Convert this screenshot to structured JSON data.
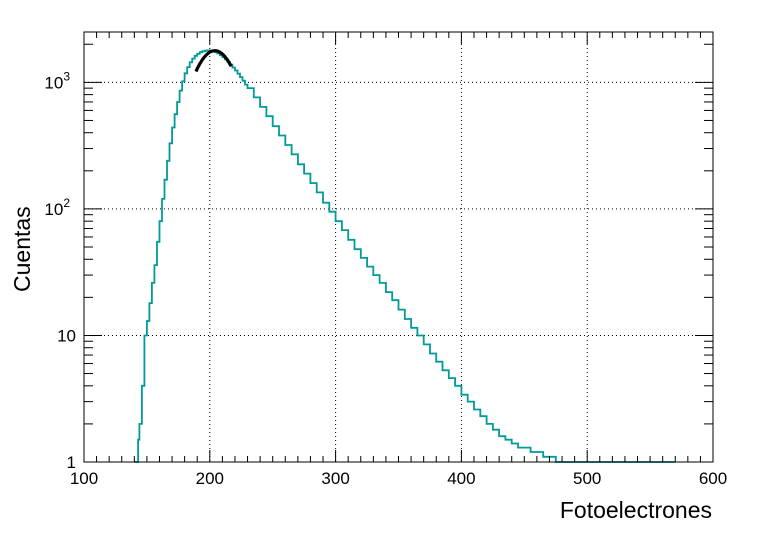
{
  "chart_data": {
    "type": "line",
    "title": "",
    "xlabel": "Fotoelectrones",
    "ylabel": "Cuentas",
    "xlim": [
      100,
      600
    ],
    "ylim": [
      1,
      2500
    ],
    "yscale": "log",
    "grid": true,
    "legend": "none",
    "x_ticks": [
      {
        "value": 100,
        "label": "100"
      },
      {
        "value": 200,
        "label": "200"
      },
      {
        "value": 300,
        "label": "300"
      },
      {
        "value": 400,
        "label": "400"
      },
      {
        "value": 500,
        "label": "500"
      },
      {
        "value": 600,
        "label": "600"
      }
    ],
    "y_ticks": [
      {
        "value": 1,
        "label": "1"
      },
      {
        "value": 10,
        "label": "10"
      },
      {
        "value": 100,
        "label": "10",
        "exp": "2"
      },
      {
        "value": 1000,
        "label": "10",
        "exp": "3"
      }
    ],
    "series": [
      {
        "color": "#009a9a",
        "x": [
          140,
          143,
          144,
          146,
          148,
          150,
          152,
          154,
          156,
          158,
          160,
          162,
          164,
          166,
          168,
          170,
          172,
          174,
          176,
          178,
          180,
          182,
          184,
          186,
          188,
          190,
          192,
          194,
          196,
          198,
          200,
          202,
          204,
          206,
          208,
          210,
          212,
          214,
          216,
          218,
          220,
          222,
          224,
          226,
          228,
          230,
          235,
          240,
          245,
          250,
          255,
          260,
          265,
          270,
          275,
          280,
          285,
          290,
          295,
          300,
          305,
          310,
          315,
          320,
          325,
          330,
          335,
          340,
          345,
          350,
          355,
          360,
          365,
          370,
          375,
          380,
          385,
          390,
          395,
          400,
          405,
          410,
          415,
          420,
          425,
          430,
          435,
          440,
          445,
          450,
          455,
          460,
          465,
          470,
          475,
          480,
          485,
          490,
          495,
          500,
          505,
          510,
          515,
          520,
          525,
          530,
          535,
          540,
          545,
          550,
          555,
          560,
          565,
          570
        ],
        "y": [
          1,
          1.5,
          2,
          4,
          10,
          13,
          18,
          26,
          36,
          55,
          80,
          120,
          170,
          240,
          330,
          440,
          560,
          700,
          860,
          1020,
          1180,
          1320,
          1440,
          1540,
          1620,
          1680,
          1730,
          1760,
          1780,
          1790,
          1780,
          1760,
          1730,
          1690,
          1640,
          1580,
          1520,
          1450,
          1380,
          1310,
          1240,
          1170,
          1100,
          1030,
          960,
          900,
          760,
          640,
          540,
          450,
          380,
          320,
          270,
          225,
          190,
          160,
          135,
          112,
          95,
          80,
          68,
          57,
          48,
          41,
          35,
          30,
          26,
          22,
          19,
          16,
          13.5,
          11.5,
          10,
          8.5,
          7.2,
          6.2,
          5.3,
          4.6,
          4,
          3.4,
          3,
          2.6,
          2.3,
          2,
          1.8,
          1.6,
          1.5,
          1.4,
          1.3,
          1.3,
          1.2,
          1.2,
          1.1,
          1.1,
          1,
          1,
          1,
          1,
          1,
          1,
          1,
          1,
          1,
          1,
          1,
          1,
          1,
          1,
          1,
          1,
          1,
          1,
          1,
          1
        ]
      }
    ],
    "fit": {
      "color": "#000000",
      "x_range": [
        189,
        217
      ],
      "peak_x": 204,
      "peak_y": 1780
    }
  }
}
